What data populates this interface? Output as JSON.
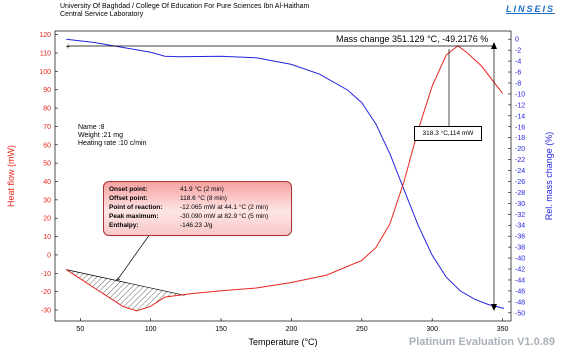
{
  "header": {
    "line1": "University Of Baghdad / College Of Education For Pure Sciences Ibn Al-Haitham",
    "line2": "Central Service Laboratory",
    "logo": "LINSEIS"
  },
  "sample": {
    "name": "Name :8",
    "weight": "Weight :21  mg",
    "rate": "Heating rate :10 c/min"
  },
  "annotations": {
    "mass_change": "Mass change 351.129 °C,  -49.2176 %",
    "peak_label": "318.3 °C,114 mW"
  },
  "event_box": {
    "rows": [
      {
        "k": "Onset point:",
        "v": "41.9 °C (2 min)"
      },
      {
        "k": "Offset point:",
        "v": "118.6 °C (8 min)"
      },
      {
        "k": "Point of reaction:",
        "v": "-12.065 mW at 44.1 °C (2 min)"
      },
      {
        "k": "Peak maximum:",
        "v": "-30.090 mW at 82.9 °C (5 min)"
      },
      {
        "k": "Enthalpy:",
        "v": "-146.23 J/g"
      }
    ]
  },
  "watermark": "Platinum Evaluation V1.0.89",
  "colors": {
    "heat": "#e8251e",
    "mass": "#2323e0",
    "left_axis": "#e8251e",
    "right_axis": "#2323e0"
  },
  "chart_data": {
    "type": "line",
    "xlabel": "Temperature (°C)",
    "ylabel": "Heat flow (mW)",
    "y2label": "Rel. mass change (%)",
    "xlim": [
      32,
      356
    ],
    "ylim": [
      -36,
      122
    ],
    "y2lim": [
      -51.5,
      1.5
    ],
    "xticks": [
      50,
      100,
      150,
      200,
      250,
      300,
      350
    ],
    "yticks": [
      -30,
      -20,
      -10,
      0,
      10,
      20,
      30,
      40,
      50,
      60,
      70,
      80,
      90,
      100,
      110,
      120
    ],
    "y2ticks": [
      0,
      -2,
      -4,
      -6,
      -8,
      -10,
      -12,
      -14,
      -16,
      -18,
      -20,
      -22,
      -24,
      -26,
      -28,
      -30,
      -32,
      -34,
      -36,
      -38,
      -40,
      -42,
      -44,
      -46,
      -48,
      -50
    ],
    "series": [
      {
        "name": "Heat flow",
        "axis": "left",
        "x": [
          40,
          50,
          60,
          70,
          80,
          90,
          100,
          110,
          120,
          130,
          150,
          175,
          200,
          225,
          250,
          260,
          270,
          280,
          290,
          300,
          310,
          318.3,
          325,
          335,
          350
        ],
        "y": [
          -8,
          -13,
          -18,
          -23,
          -28,
          -30.5,
          -28,
          -23,
          -22,
          -21,
          -19.5,
          -18,
          -15,
          -11,
          -3,
          4,
          17,
          40,
          68,
          92,
          109,
          114,
          110,
          103,
          88
        ]
      },
      {
        "name": "Rel. mass change",
        "axis": "right",
        "x": [
          40,
          60,
          80,
          100,
          110,
          120,
          150,
          175,
          200,
          220,
          240,
          250,
          260,
          270,
          280,
          290,
          300,
          310,
          320,
          330,
          340,
          351
        ],
        "y": [
          0,
          -0.6,
          -1.5,
          -2.4,
          -3.1,
          -3.2,
          -3.1,
          -3.4,
          -4.6,
          -6.4,
          -9.3,
          -11.6,
          -15.5,
          -21,
          -27.5,
          -34,
          -39.5,
          -43.5,
          -46,
          -47.5,
          -48.5,
          -49.2
        ]
      }
    ],
    "baseline": {
      "x": [
        40,
        124
      ],
      "y": [
        -8,
        -22
      ]
    }
  }
}
